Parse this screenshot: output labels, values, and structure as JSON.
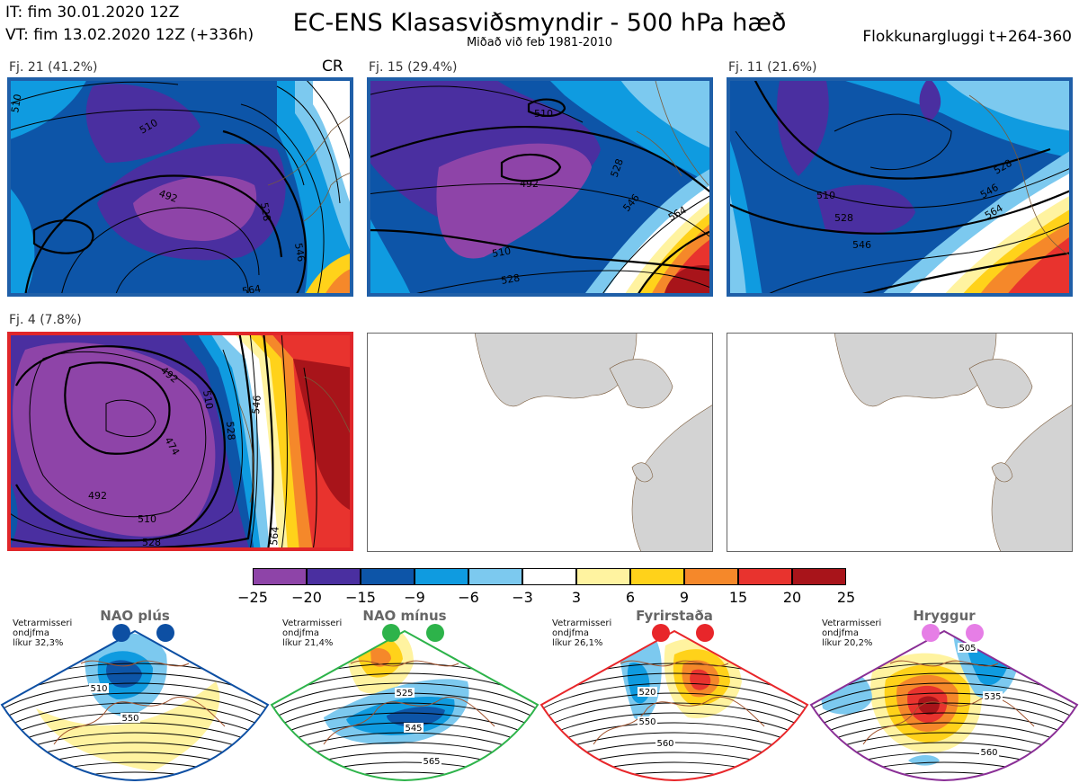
{
  "header": {
    "it": "IT: fim 30.01.2020 12Z",
    "vt": "VT: fim 13.02.2020 12Z  (+336h)",
    "title": "EC-ENS Klasasviðsmyndir - 500 hPa hæð",
    "subtitle": "Miðað við feb 1981-2010",
    "window": "Flokkunargluggi t+264-360"
  },
  "panels": [
    {
      "id": "p1",
      "title": "Fj. 21 (41.2%)",
      "badge": "CR",
      "border": "#1f5fa8",
      "contours": [
        "510",
        "492",
        "528",
        "546",
        "564",
        "492",
        "510"
      ]
    },
    {
      "id": "p2",
      "title": "Fj. 15 (29.4%)",
      "border": "#1f5fa8",
      "contours": [
        "510",
        "492",
        "528",
        "546",
        "564",
        "510",
        "528"
      ]
    },
    {
      "id": "p3",
      "title": "Fj. 11 (21.6%)",
      "border": "#1f5fa8",
      "contours": [
        "510",
        "528",
        "546",
        "564",
        "528",
        "546"
      ]
    },
    {
      "id": "p4",
      "title": "Fj. 4 (7.8%)",
      "border": "#e0262a",
      "contours": [
        "492",
        "474",
        "510",
        "528",
        "546",
        "564",
        "492",
        "510",
        "528"
      ]
    }
  ],
  "chart_data": {
    "type": "heatmap",
    "variable": "500 hPa hæð",
    "colorbar": {
      "ticks": [
        "−25",
        "−20",
        "−15",
        "−9",
        "−6",
        "−3",
        "3",
        "6",
        "9",
        "15",
        "20",
        "25"
      ],
      "bounds": [
        -25,
        -20,
        -15,
        -9,
        -6,
        -3,
        3,
        6,
        9,
        15,
        20,
        25
      ],
      "colors": [
        "#8e44a8",
        "#4a2fa0",
        "#0d55a8",
        "#0f9be0",
        "#7cc9ef",
        "#ffffff",
        "#fff3a0",
        "#ffd21a",
        "#f5882a",
        "#e8332e",
        "#a8141a"
      ]
    },
    "clusters": [
      {
        "label": "Fj. 21 (41.2%)",
        "members": 21,
        "percent": 41.2,
        "regime": "CR"
      },
      {
        "label": "Fj. 15 (29.4%)",
        "members": 15,
        "percent": 29.4
      },
      {
        "label": "Fj. 11 (21.6%)",
        "members": 11,
        "percent": 21.6
      },
      {
        "label": "Fj. 4 (7.8%)",
        "members": 4,
        "percent": 7.8
      }
    ]
  },
  "regimes": [
    {
      "name": "NAO plús",
      "note": "Vetrarmisseri\nondjfma\nlíkur 32,3%",
      "dot": "#0d4fa3",
      "border": "#0d4fa3",
      "labels": [
        "510",
        "550"
      ]
    },
    {
      "name": "NAO mínus",
      "note": "Vetrarmisseri\nondjfma\nlíkur 21,4%",
      "dot": "#2db34a",
      "border": "#2db34a",
      "labels": [
        "525",
        "545",
        "565"
      ]
    },
    {
      "name": "Fyrirstaða",
      "note": "Vetrarmisseri\nondjfma\nlíkur 26,1%",
      "dot": "#e8262a",
      "border": "#e8262a",
      "labels": [
        "520",
        "550",
        "560"
      ]
    },
    {
      "name": "Hryggur",
      "note": "Vetrarmisseri\nondjfma\nlíkur 20,2%",
      "dot": "#e67ee6",
      "border": "#8a2f96",
      "labels": [
        "505",
        "535",
        "560"
      ]
    }
  ]
}
